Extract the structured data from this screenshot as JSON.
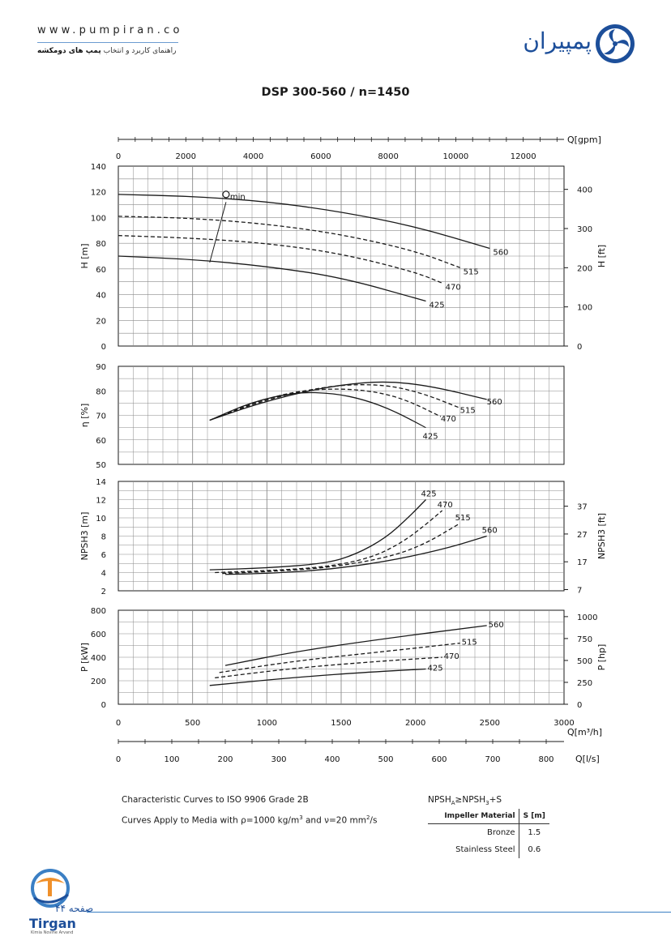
{
  "header": {
    "url": "www.pumpiran.co",
    "subtitle_plain": "راهنمای کاربرد و انتخاب",
    "subtitle_bold": "پمپ های دومکشه",
    "logo_text": "پمپیران"
  },
  "title": "DSP 300-560 / n=1450",
  "colors": {
    "curve": "#1a1a1a",
    "grid": "#8a8a8a",
    "accent": "#1d4f9a",
    "footer_rule": "#3b7fc4"
  },
  "chart_data": [
    {
      "type": "line",
      "panel": "head",
      "ylabel": "H [m]",
      "ylabel_right": "H [ft]",
      "ylim": [
        0,
        140
      ],
      "yticks": [
        0,
        20,
        40,
        60,
        80,
        100,
        120,
        140
      ],
      "yticks_right": [
        0,
        100,
        200,
        300,
        400
      ],
      "xlim": [
        0,
        3000
      ],
      "grid": true,
      "min_label": "min",
      "min_line": [
        {
          "x": 615,
          "y": 65
        },
        {
          "x": 725,
          "y": 112
        }
      ],
      "min_marker": {
        "x": 725,
        "y": 118
      },
      "series": [
        {
          "name": "560",
          "style": "solid",
          "x": [
            0,
            500,
            1000,
            1500,
            2000,
            2500
          ],
          "y": [
            118,
            116.5,
            112.5,
            104.5,
            93,
            76
          ]
        },
        {
          "name": "515",
          "style": "dashed",
          "x": [
            0,
            500,
            1000,
            1500,
            2000,
            2300
          ],
          "y": [
            101,
            99.5,
            95,
            87,
            74,
            61
          ]
        },
        {
          "name": "470",
          "style": "dashed",
          "x": [
            0,
            500,
            1000,
            1500,
            2000,
            2180
          ],
          "y": [
            86,
            84,
            80,
            72,
            57.5,
            49
          ]
        },
        {
          "name": "425",
          "style": "solid",
          "x": [
            0,
            500,
            1000,
            1500,
            2070
          ],
          "y": [
            70,
            67.5,
            62,
            53.5,
            35
          ]
        }
      ]
    },
    {
      "type": "line",
      "panel": "efficiency",
      "ylabel": "η [%]",
      "ylim": [
        50,
        90
      ],
      "yticks": [
        50,
        60,
        70,
        80,
        90
      ],
      "xlim": [
        0,
        3000
      ],
      "grid": true,
      "series": [
        {
          "name": "560",
          "style": "solid",
          "x": [
            615,
            900,
            1200,
            1500,
            1800,
            2100,
            2480
          ],
          "y": [
            68,
            74,
            79,
            82.5,
            84,
            82,
            76.5
          ]
        },
        {
          "name": "515",
          "style": "dashed",
          "x": [
            615,
            900,
            1200,
            1500,
            1800,
            2050,
            2300
          ],
          "y": [
            68,
            74.5,
            79.5,
            82.5,
            82.5,
            79,
            73
          ]
        },
        {
          "name": "470",
          "style": "dashed",
          "x": [
            615,
            900,
            1200,
            1500,
            1750,
            1950,
            2170
          ],
          "y": [
            68,
            75,
            80,
            81,
            79.5,
            76,
            69.5
          ]
        },
        {
          "name": "425",
          "style": "solid",
          "x": [
            615,
            900,
            1200,
            1450,
            1650,
            1850,
            2070
          ],
          "y": [
            68,
            75.5,
            79.5,
            79,
            76.5,
            72,
            65
          ]
        }
      ]
    },
    {
      "type": "line",
      "panel": "npsh",
      "ylabel": "NPSH3 [m]",
      "ylabel_right": "NPSH3 [ft]",
      "ylim": [
        2,
        14
      ],
      "yticks": [
        2,
        4,
        6,
        8,
        10,
        12,
        14
      ],
      "yticks_right": [
        7,
        17,
        27,
        37
      ],
      "xlim": [
        0,
        3000
      ],
      "grid": true,
      "series": [
        {
          "name": "425",
          "style": "solid",
          "x": [
            615,
            1000,
            1400,
            1600,
            1800,
            1950,
            2070
          ],
          "y": [
            4.3,
            4.5,
            5,
            6,
            7.8,
            10,
            12
          ]
        },
        {
          "name": "470",
          "style": "dashed",
          "x": [
            650,
            1000,
            1400,
            1700,
            1900,
            2050,
            2180
          ],
          "y": [
            4,
            4.2,
            4.6,
            5.6,
            7.2,
            9,
            10.8
          ]
        },
        {
          "name": "515",
          "style": "dashed",
          "x": [
            700,
            1000,
            1400,
            1800,
            2050,
            2300
          ],
          "y": [
            3.9,
            4.1,
            4.5,
            5.6,
            7,
            9.4
          ]
        },
        {
          "name": "560",
          "style": "solid",
          "x": [
            720,
            1000,
            1400,
            1800,
            2200,
            2480
          ],
          "y": [
            3.8,
            3.9,
            4.3,
            5.2,
            6.6,
            8
          ]
        }
      ]
    },
    {
      "type": "line",
      "panel": "power",
      "ylabel": "P [kW]",
      "ylabel_right": "P [hp]",
      "ylim": [
        0,
        800
      ],
      "yticks": [
        0,
        200,
        400,
        600,
        800
      ],
      "yticks_right": [
        0,
        250,
        500,
        750,
        1000
      ],
      "xlim": [
        0,
        3000
      ],
      "xticks": [
        0,
        500,
        1000,
        1500,
        2000,
        2500,
        3000
      ],
      "xlabel": "Q[m³/h]",
      "top_axis": {
        "label": "Q[gpm]",
        "ticks": [
          0,
          2000,
          4000,
          6000,
          8000,
          10000,
          12000
        ]
      },
      "bottom_axis": {
        "label": "Q[l/s]",
        "ticks": [
          0,
          100,
          200,
          300,
          400,
          500,
          600,
          700,
          800
        ]
      },
      "grid": true,
      "series": [
        {
          "name": "560",
          "style": "solid",
          "x": [
            720,
            1200,
            1800,
            2480
          ],
          "y": [
            330,
            450,
            560,
            670
          ]
        },
        {
          "name": "515",
          "style": "dashed",
          "x": [
            680,
            1200,
            1800,
            2300
          ],
          "y": [
            270,
            370,
            450,
            520
          ]
        },
        {
          "name": "470",
          "style": "dashed",
          "x": [
            650,
            1200,
            1800,
            2180
          ],
          "y": [
            225,
            310,
            370,
            400
          ]
        },
        {
          "name": "425",
          "style": "solid",
          "x": [
            615,
            1200,
            1700,
            2070
          ],
          "y": [
            160,
            230,
            275,
            300
          ]
        }
      ]
    }
  ],
  "notes": {
    "line1": "Characteristic Curves to ISO 9906 Grade 2B",
    "line2_prefix": "Curves Apply to Media with",
    "line2_rho": "ρ=1000 kg/m",
    "line2_rho_exp": "3",
    "line2_and": "and",
    "line2_nu": "ν=20 mm",
    "line2_nu_exp": "2",
    "line2_suffix": "/s"
  },
  "npsh_margin": {
    "formula_a": "NPSH",
    "formula_a_sub": "A",
    "formula_mid": "≥NPSH",
    "formula_b_sub": "3",
    "formula_end": "+S",
    "col_material": "Impeller Material",
    "col_s": "S [m]",
    "rows": [
      {
        "material": "Bronze",
        "s": "1.5"
      },
      {
        "material": "Stainless Steel",
        "s": "0.6"
      }
    ]
  },
  "footer": {
    "page_word": "صفحه",
    "page_number": "۴۴",
    "brand": "Tirgan",
    "brand_sub": "Kimia Novine Arvand"
  }
}
